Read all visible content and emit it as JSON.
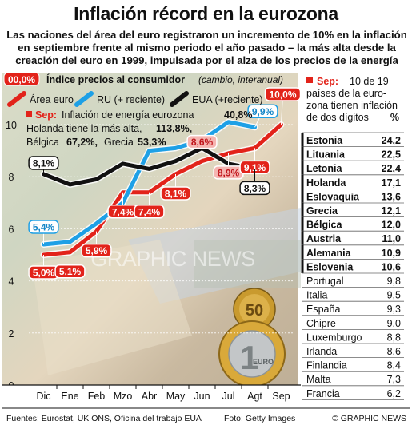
{
  "header": {
    "title": "Inflación récord en la eurozona",
    "subtitle": "Las naciones del área del euro registraron un incremento de 10% en la inflación en septiembre frente al mismo periodo el año pasado – la más alta desde la creación del euro en 1999, impulsada por el alza de los precios de la energía"
  },
  "chart_data": {
    "type": "line",
    "title": "Índice precios al consumidor",
    "subtitle": "(cambio, interanual)",
    "categories": [
      "Dic",
      "Ene",
      "Feb",
      "Mzo",
      "Abr",
      "May",
      "Jun",
      "Jul",
      "Agt",
      "Sep"
    ],
    "ylim": [
      0,
      10
    ],
    "yticks": [
      "0",
      "2",
      "4",
      "6",
      "8",
      "10"
    ],
    "ylabel": "%",
    "series": [
      {
        "name": "Área euro",
        "color": "#e2231a",
        "values": [
          5.0,
          5.1,
          5.9,
          7.4,
          7.4,
          8.1,
          8.6,
          8.9,
          9.1,
          10.0
        ]
      },
      {
        "name": "RU (+ reciente)",
        "color": "#1ea0e6",
        "values": [
          5.4,
          5.5,
          6.2,
          7.0,
          9.0,
          9.1,
          9.4,
          10.1,
          9.9,
          null
        ]
      },
      {
        "name": "EUA (+reciente)",
        "color": "#111111",
        "values": [
          8.1,
          7.7,
          7.9,
          8.5,
          8.3,
          8.6,
          9.1,
          8.5,
          8.3,
          null
        ]
      }
    ],
    "data_labels": [
      {
        "series": 0,
        "index": 0,
        "text": "5,0%",
        "style": "red"
      },
      {
        "series": 0,
        "index": 1,
        "text": "5,1%",
        "style": "red"
      },
      {
        "series": 0,
        "index": 2,
        "text": "5,9%",
        "style": "red"
      },
      {
        "series": 0,
        "index": 3,
        "text": "7,4%",
        "style": "red"
      },
      {
        "series": 0,
        "index": 4,
        "text": "7,4%",
        "style": "red"
      },
      {
        "series": 0,
        "index": 5,
        "text": "8,1%",
        "style": "red"
      },
      {
        "series": 0,
        "index": 6,
        "text": "8,6%",
        "style": "pink"
      },
      {
        "series": 0,
        "index": 7,
        "text": "8,9%",
        "style": "pink"
      },
      {
        "series": 0,
        "index": 8,
        "text": "9,1%",
        "style": "red"
      },
      {
        "series": 0,
        "index": 9,
        "text": "10,0%",
        "style": "red"
      },
      {
        "series": 1,
        "index": 0,
        "text": "5,4%",
        "style": "blue"
      },
      {
        "series": 1,
        "index": 8,
        "text": "9,9%",
        "style": "blue"
      },
      {
        "series": 2,
        "index": 0,
        "text": "8,1%",
        "style": "black"
      },
      {
        "series": 2,
        "index": 8,
        "text": "8,3%",
        "style": "black"
      }
    ],
    "top_value_label": "00,0%",
    "note": {
      "lead": "Sep:",
      "line1": "Inflación de energía eurozona",
      "value1": "40,8%",
      "line2_text": "Holanda tiene la más alta,",
      "value2": "113,8%,",
      "line3_a": "Bélgica",
      "value3": "67,2%,",
      "line3_b": "Grecia",
      "value4": "53,3%"
    }
  },
  "side_table": {
    "lead": "Sep:",
    "header_lines": [
      "10 de 19",
      "países de la euro-",
      "zona tienen inflación",
      "de dos dígitos"
    ],
    "unit": "%",
    "rows": [
      {
        "country": "Estonia",
        "value": "24,2",
        "double_digit": true
      },
      {
        "country": "Lituania",
        "value": "22,5",
        "double_digit": true
      },
      {
        "country": "Letonia",
        "value": "22,4",
        "double_digit": true
      },
      {
        "country": "Holanda",
        "value": "17,1",
        "double_digit": true
      },
      {
        "country": "Eslovaquia",
        "value": "13,6",
        "double_digit": true
      },
      {
        "country": "Grecia",
        "value": "12,1",
        "double_digit": true
      },
      {
        "country": "Bélgica",
        "value": "12,0",
        "double_digit": true
      },
      {
        "country": "Austria",
        "value": "11,0",
        "double_digit": true
      },
      {
        "country": "Alemania",
        "value": "10,9",
        "double_digit": true
      },
      {
        "country": "Eslovenia",
        "value": "10,6",
        "double_digit": true
      },
      {
        "country": "Portugal",
        "value": "9,8",
        "double_digit": false
      },
      {
        "country": "Italia",
        "value": "9,5",
        "double_digit": false
      },
      {
        "country": "España",
        "value": "9,3",
        "double_digit": false
      },
      {
        "country": "Chipre",
        "value": "9,0",
        "double_digit": false
      },
      {
        "country": "Luxemburgo",
        "value": "8,8",
        "double_digit": false
      },
      {
        "country": "Irlanda",
        "value": "8,6",
        "double_digit": false
      },
      {
        "country": "Finlandia",
        "value": "8,4",
        "double_digit": false
      },
      {
        "country": "Malta",
        "value": "7,3",
        "double_digit": false
      },
      {
        "country": "Francia",
        "value": "6,2",
        "double_digit": false
      }
    ]
  },
  "watermark": "GRAPHIC NEWS",
  "coin": {
    "denomination": "1",
    "unit": "EURO",
    "small": "50"
  },
  "footer": {
    "sources": "Fuentes: Eurostat, UK ONS, Oficina del trabajo EUA",
    "photo": "Foto: Getty Images",
    "credit": "© GRAPHIC NEWS"
  }
}
